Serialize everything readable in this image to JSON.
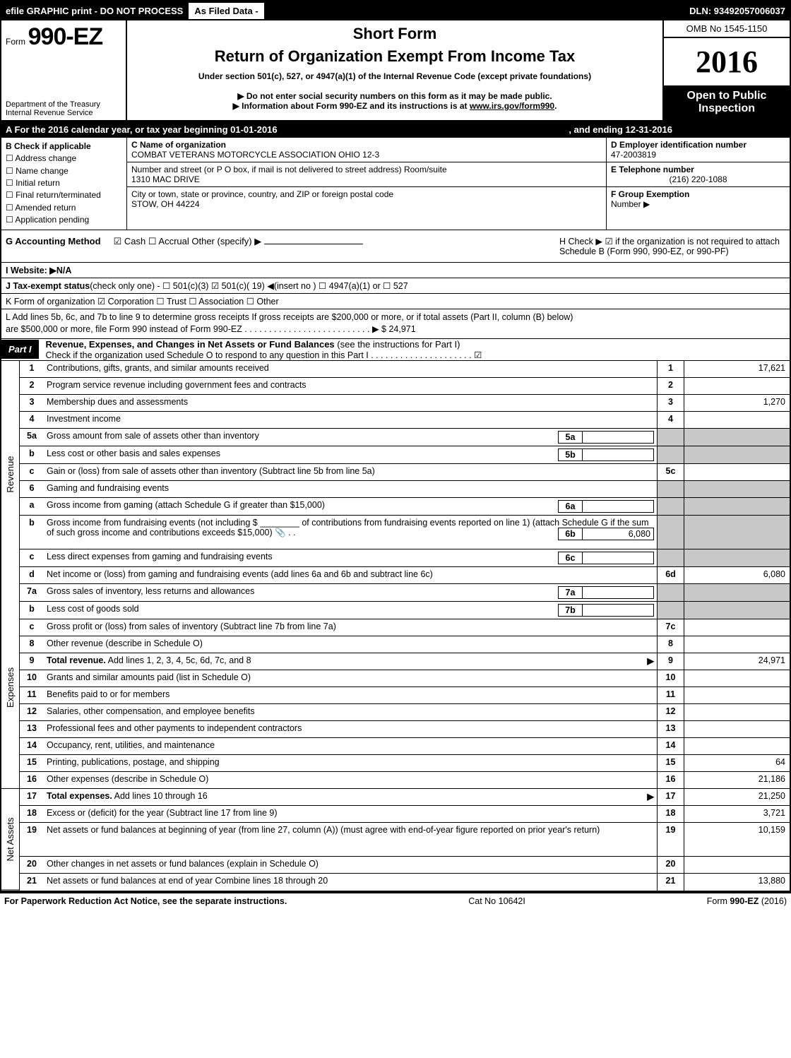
{
  "top_bar": {
    "efile": "efile GRAPHIC print - DO NOT PROCESS",
    "as_filed": "As Filed Data -",
    "dln": "DLN: 93492057006037"
  },
  "header": {
    "form_label": "Form",
    "form_no": "990-EZ",
    "dept1": "Department of the Treasury",
    "dept2": "Internal Revenue Service",
    "short_form": "Short Form",
    "return_title": "Return of Organization Exempt From Income Tax",
    "under_section": "Under section 501(c), 527, or 4947(a)(1) of the Internal Revenue Code (except private foundations)",
    "donot": "▶ Do not enter social security numbers on this form as it may be made public.",
    "info": "▶ Information about Form 990-EZ and its instructions is at ",
    "info_link": "www.irs.gov/form990",
    "info_period": ".",
    "omb": "OMB No 1545-1150",
    "year": "2016",
    "open1": "Open to Public",
    "open2": "Inspection"
  },
  "section_a": {
    "text": "A  For the 2016 calendar year, or tax year beginning 01-01-2016",
    "ending": ", and ending 12-31-2016"
  },
  "col_b": {
    "title": "B  Check if applicable",
    "addr": "☐ Address change",
    "name": "☐ Name change",
    "initial": "☐ Initial return",
    "final": "☐ Final return/terminated",
    "amended": "☐ Amended return",
    "pending": "☐ Application pending"
  },
  "col_c": {
    "c_label": "C Name of organization",
    "org": "COMBAT VETERANS MOTORCYCLE ASSOCIATION OHIO 12-3",
    "addr_label": "Number and street (or P  O  box, if mail is not delivered to street address)  Room/suite",
    "addr": "1310 MAC DRIVE",
    "city_label": "City or town, state or province, country, and ZIP or foreign postal code",
    "city": "STOW, OH  44224"
  },
  "col_d": {
    "d_label": "D Employer identification number",
    "ein": "47-2003819",
    "e_label": "E Telephone number",
    "phone": "(216) 220-1088",
    "f_label": "F Group Exemption",
    "f_label2": "Number     ▶"
  },
  "row_g": {
    "g_label": "G Accounting Method",
    "g_opts": "☑ Cash   ☐ Accrual   Other (specify) ▶",
    "h_text": "H   Check ▶   ☑ if the organization is not required to attach Schedule B (Form 990, 990-EZ, or 990-PF)"
  },
  "row_i": "I Website: ▶N/A",
  "row_j": "J Tax-exempt status(check only one) - ☐ 501(c)(3) ☑ 501(c)( 19) ◀(insert no ) ☐ 4947(a)(1) or ☐ 527",
  "row_k": "K Form of organization    ☑ Corporation   ☐ Trust   ☐ Association   ☐ Other",
  "row_l1": "L Add lines 5b, 6c, and 7b to line 9 to determine gross receipts  If gross receipts are $200,000 or more, or if total assets (Part II, column (B) below)",
  "row_l2": "are $500,000 or more, file Form 990 instead of Form 990-EZ  . . . . . . . . . . . . . . . . . . . . . . . . . . ▶ $ 24,971",
  "part1": {
    "label": "Part I",
    "title": "Revenue, Expenses, and Changes in Net Assets or Fund Balances",
    "paren": " (see the instructions for Part I)",
    "check": "Check if the organization used Schedule O to respond to any question in this Part I . . . . . . . . . . . . . . . . . . . . . ☑"
  },
  "vtabs": {
    "revenue": "Revenue",
    "expenses": "Expenses",
    "net": "Net Assets"
  },
  "rows": [
    {
      "n": "1",
      "desc": "Contributions, gifts, grants, and similar amounts received",
      "rn": "1",
      "val": "17,621"
    },
    {
      "n": "2",
      "desc": "Program service revenue including government fees and contracts",
      "rn": "2",
      "val": ""
    },
    {
      "n": "3",
      "desc": "Membership dues and assessments",
      "rn": "3",
      "val": "1,270"
    },
    {
      "n": "4",
      "desc": "Investment income",
      "rn": "4",
      "val": ""
    },
    {
      "n": "5a",
      "desc": "Gross amount from sale of assets other than inventory",
      "sub": "5a",
      "subval": "",
      "shaded": true
    },
    {
      "n": "b",
      "desc": "Less  cost or other basis and sales expenses",
      "sub": "5b",
      "subval": "",
      "shaded": true
    },
    {
      "n": "c",
      "desc": "Gain or (loss) from sale of assets other than inventory (Subtract line 5b from line 5a)",
      "rn": "5c",
      "val": ""
    },
    {
      "n": "6",
      "desc": "Gaming and fundraising events",
      "shaded": true,
      "noright": true
    },
    {
      "n": "a",
      "desc": "Gross income from gaming (attach Schedule G if greater than $15,000)",
      "sub": "6a",
      "subval": "",
      "shaded": true
    },
    {
      "n": "b",
      "desc": "Gross income from fundraising events (not including $ ________ of contributions from fundraising events reported on line 1) (attach Schedule G if the sum of such gross income and contributions exceeds $15,000) 📎 . .",
      "sub": "6b",
      "subval": "6,080",
      "shaded": true,
      "tall": true
    },
    {
      "n": "c",
      "desc": "Less  direct expenses from gaming and fundraising events",
      "sub": "6c",
      "subval": "",
      "shaded": true
    },
    {
      "n": "d",
      "desc": "Net income or (loss) from gaming and fundraising events (add lines 6a and 6b and subtract line 6c)",
      "rn": "6d",
      "val": "6,080"
    },
    {
      "n": "7a",
      "desc": "Gross sales of inventory, less returns and allowances",
      "sub": "7a",
      "subval": "",
      "shaded": true
    },
    {
      "n": "b",
      "desc": "Less  cost of goods sold",
      "sub": "7b",
      "subval": "",
      "shaded": true
    },
    {
      "n": "c",
      "desc": "Gross profit or (loss) from sales of inventory (Subtract line 7b from line 7a)",
      "rn": "7c",
      "val": ""
    },
    {
      "n": "8",
      "desc": "Other revenue (describe in Schedule O)",
      "rn": "8",
      "val": ""
    },
    {
      "n": "9",
      "desc": "Total revenue. Add lines 1, 2, 3, 4, 5c, 6d, 7c, and 8",
      "rn": "9",
      "val": "24,971",
      "bold": true,
      "arrow": true
    },
    {
      "n": "10",
      "desc": "Grants and similar amounts paid (list in Schedule O)",
      "rn": "10",
      "val": ""
    },
    {
      "n": "11",
      "desc": "Benefits paid to or for members",
      "rn": "11",
      "val": ""
    },
    {
      "n": "12",
      "desc": "Salaries, other compensation, and employee benefits",
      "rn": "12",
      "val": ""
    },
    {
      "n": "13",
      "desc": "Professional fees and other payments to independent contractors",
      "rn": "13",
      "val": ""
    },
    {
      "n": "14",
      "desc": "Occupancy, rent, utilities, and maintenance",
      "rn": "14",
      "val": ""
    },
    {
      "n": "15",
      "desc": "Printing, publications, postage, and shipping",
      "rn": "15",
      "val": "64"
    },
    {
      "n": "16",
      "desc": "Other expenses (describe in Schedule O)",
      "rn": "16",
      "val": "21,186"
    },
    {
      "n": "17",
      "desc": "Total expenses. Add lines 10 through 16",
      "rn": "17",
      "val": "21,250",
      "bold": true,
      "arrow": true
    },
    {
      "n": "18",
      "desc": "Excess or (deficit) for the year (Subtract line 17 from line 9)",
      "rn": "18",
      "val": "3,721"
    },
    {
      "n": "19",
      "desc": "Net assets or fund balances at beginning of year (from line 27, column (A)) (must agree with end-of-year figure reported on prior year's return)",
      "rn": "19",
      "val": "10,159",
      "tall": true
    },
    {
      "n": "20",
      "desc": "Other changes in net assets or fund balances (explain in Schedule O)",
      "rn": "20",
      "val": ""
    },
    {
      "n": "21",
      "desc": "Net assets or fund balances at end of year  Combine lines 18 through 20",
      "rn": "21",
      "val": "13,880"
    }
  ],
  "footer": {
    "left": "For Paperwork Reduction Act Notice, see the separate instructions.",
    "mid": "Cat No  10642I",
    "right": "Form 990-EZ (2016)"
  },
  "colors": {
    "black": "#000000",
    "white": "#ffffff",
    "shade": "#c8c8c8"
  }
}
